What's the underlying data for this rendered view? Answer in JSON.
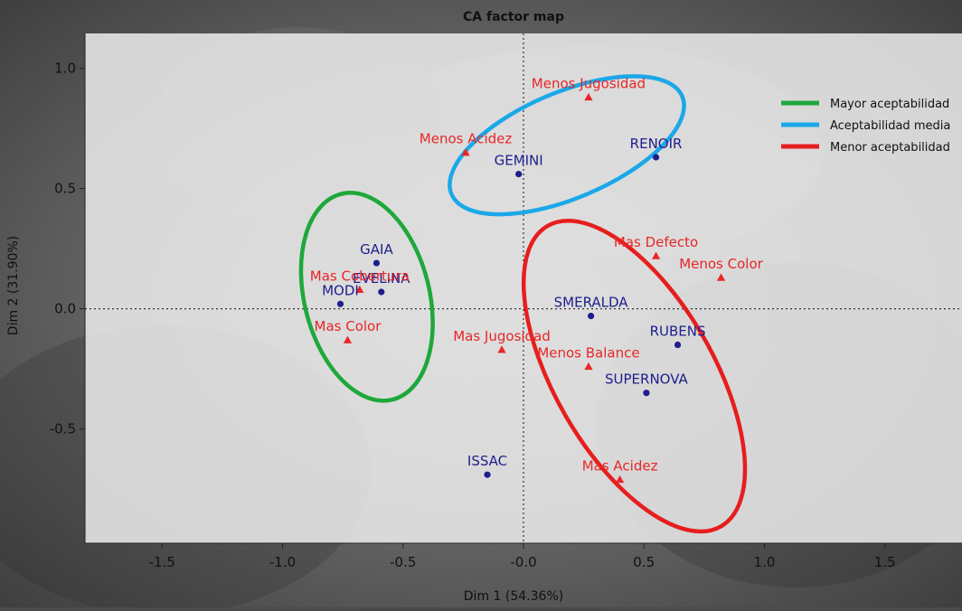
{
  "chart_data": {
    "type": "scatter",
    "title": "CA factor map",
    "xlabel": "Dim 1 (54.36%)",
    "ylabel": "Dim 2 (31.90%)",
    "xlim": [
      -1.82,
      1.82
    ],
    "ylim": [
      -0.975,
      1.145
    ],
    "x_ticks": [
      "-1.5",
      "-1.0",
      "-0.5",
      "-0.0",
      "0.5",
      "1.0",
      "1.5"
    ],
    "x_tick_values": [
      -1.5,
      -1.0,
      -0.5,
      0.0,
      0.5,
      1.0,
      1.5
    ],
    "y_ticks": [
      "1.0",
      "0.5",
      "0.0",
      "-0.5"
    ],
    "y_tick_values": [
      1.0,
      0.5,
      0.0,
      -0.5
    ],
    "reference_lines": {
      "x": 0,
      "y": 0,
      "style": "dotted"
    },
    "grid": false,
    "colors": {
      "row_points": "#1e1e8c",
      "column_points": "#e82626",
      "group_green": "#1ea83a",
      "group_blue": "#1aa8e8",
      "group_red": "#e61e1e",
      "panel": "#ececec"
    },
    "series": [
      {
        "name": "varieties",
        "marker": "circle",
        "color": "#1e1e8c",
        "points": [
          {
            "label": "GEMINI",
            "x": -0.02,
            "y": 0.56
          },
          {
            "label": "RENOIR",
            "x": 0.55,
            "y": 0.63
          },
          {
            "label": "GAIA",
            "x": -0.61,
            "y": 0.19
          },
          {
            "label": "EVELINA",
            "x": -0.59,
            "y": 0.07
          },
          {
            "label": "MODI",
            "x": -0.76,
            "y": 0.02
          },
          {
            "label": "SMERALDA",
            "x": 0.28,
            "y": -0.03
          },
          {
            "label": "RUBENS",
            "x": 0.64,
            "y": -0.15
          },
          {
            "label": "SUPERNOVA",
            "x": 0.51,
            "y": -0.35
          },
          {
            "label": "ISSAC",
            "x": -0.15,
            "y": -0.69
          }
        ]
      },
      {
        "name": "attributes",
        "marker": "triangle",
        "color": "#e82626",
        "points": [
          {
            "label": "Menos Jugosidad",
            "x": 0.27,
            "y": 0.88
          },
          {
            "label": "Menos Acidez",
            "x": -0.24,
            "y": 0.65
          },
          {
            "label": "Mas Cobertura",
            "x": -0.68,
            "y": 0.08
          },
          {
            "label": "Mas Color",
            "x": -0.73,
            "y": -0.13
          },
          {
            "label": "Mas Jugosidad",
            "x": -0.09,
            "y": -0.17
          },
          {
            "label": "Mas Defecto",
            "x": 0.55,
            "y": 0.22
          },
          {
            "label": "Menos Color",
            "x": 0.82,
            "y": 0.13
          },
          {
            "label": "Menos Balance",
            "x": 0.27,
            "y": -0.24
          },
          {
            "label": "Mas Acidez",
            "x": 0.4,
            "y": -0.71
          }
        ]
      }
    ],
    "ellipses": [
      {
        "name": "Mayor aceptabilidad",
        "color": "#1ea83a",
        "cx": -0.65,
        "cy": 0.05,
        "rx": 0.44,
        "ry": 0.26,
        "angle_deg": 104
      },
      {
        "name": "Aceptabilidad media",
        "color": "#1aa8e8",
        "cx": 0.18,
        "cy": 0.68,
        "rx": 0.52,
        "ry": 0.22,
        "angle_deg": 23
      },
      {
        "name": "Menor aceptabilidad",
        "color": "#e61e1e",
        "cx": 0.46,
        "cy": -0.28,
        "rx": 0.72,
        "ry": 0.33,
        "angle_deg": 120
      }
    ],
    "legend": {
      "position": "top-right",
      "entries": [
        "Mayor aceptabilidad",
        "Aceptabilidad media",
        "Menor aceptabilidad"
      ]
    }
  }
}
